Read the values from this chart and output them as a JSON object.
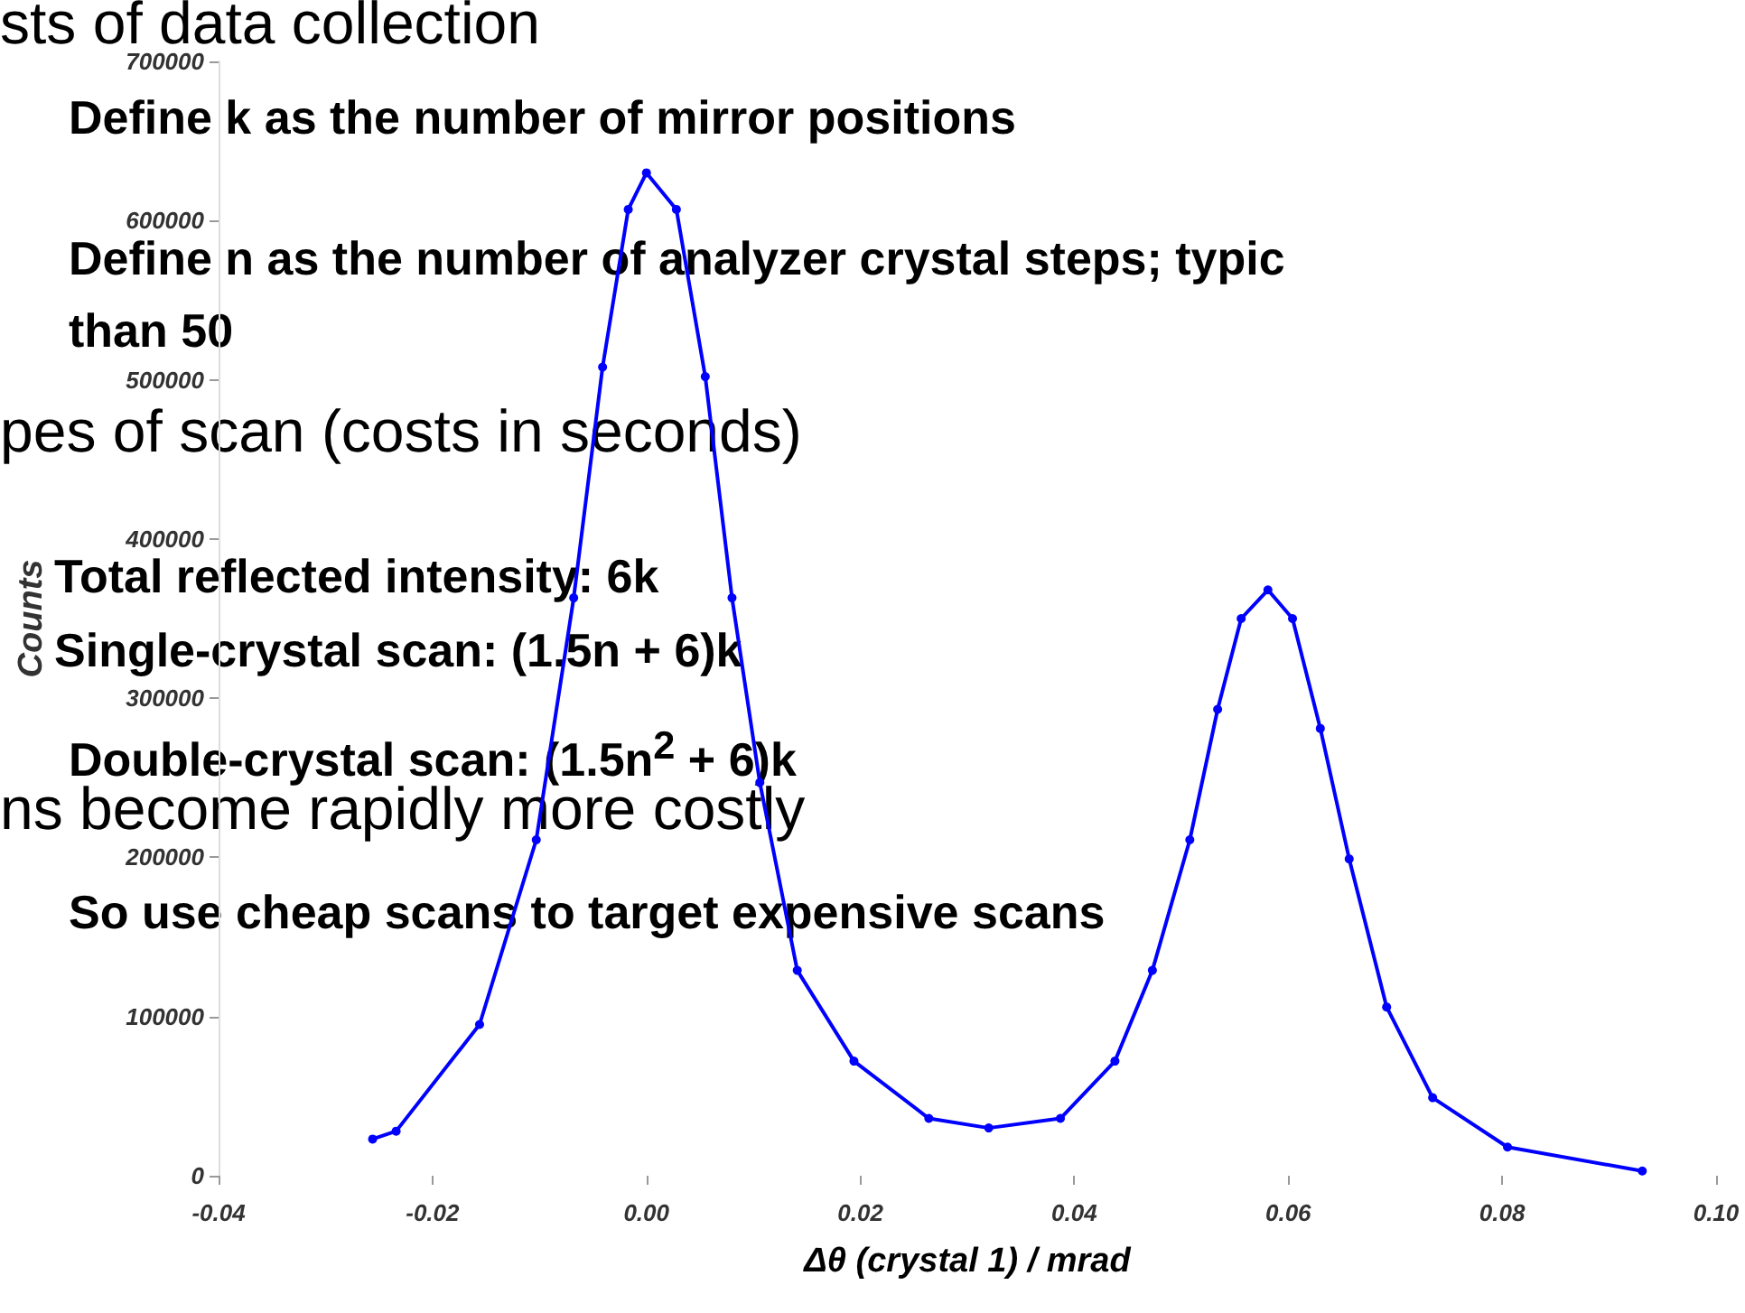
{
  "chart_data": {
    "type": "line",
    "xlabel": "Δθ (crystal 1) / mrad",
    "ylabel": "Counts",
    "x": [
      -0.0256,
      -0.0234,
      -0.0156,
      -0.0103,
      -0.0068,
      -0.0041,
      -0.0017,
      0,
      0.0028,
      0.0055,
      0.008,
      0.0106,
      0.0141,
      0.0194,
      0.0264,
      0.032,
      0.0387,
      0.0438,
      0.0473,
      0.0508,
      0.0534,
      0.0556,
      0.0581,
      0.0604,
      0.063,
      0.0657,
      0.0692,
      0.0735,
      0.0805,
      0.0931
    ],
    "series": [
      {
        "color": "#0000ff",
        "values": [
          23000,
          28000,
          95000,
          211000,
          363000,
          508000,
          607000,
          630000,
          607000,
          502000,
          363000,
          247000,
          129000,
          72000,
          36000,
          30000,
          36000,
          72000,
          129000,
          211000,
          293000,
          350000,
          368000,
          350000,
          281000,
          199000,
          106000,
          49000,
          18000,
          3000
        ]
      }
    ],
    "xlim": [
      -0.04,
      0.1
    ],
    "xticks": [
      {
        "value": -0.04,
        "label": "-0.04"
      },
      {
        "value": -0.02,
        "label": "-0.02"
      },
      {
        "value": 0,
        "label": "0.00"
      },
      {
        "value": 0.02,
        "label": "0.02"
      },
      {
        "value": 0.04,
        "label": "0.04"
      },
      {
        "value": 0.06,
        "label": "0.06"
      },
      {
        "value": 0.08,
        "label": "0.08"
      },
      {
        "value": 0.1,
        "label": "0.10"
      }
    ],
    "ylim": [
      0,
      700000
    ],
    "yticks": [
      0,
      100000,
      200000,
      300000,
      400000,
      500000,
      600000,
      700000
    ],
    "grid": false,
    "marker": "circle",
    "line_style": "solid",
    "annotations": [
      "sts of data collection",
      "Define k as the number of mirror positions",
      "Define n as the number of analyzer crystal steps; typic",
      "than 50",
      "pes of scan (costs in seconds)",
      "Total reflected intensity: 6k",
      "Single-crystal scan: (1.5n + 6)k",
      "Double-crystal scan: (1.5n$^{2}$ + 6)k",
      "ns become rapidly more costly",
      "So use cheap scans to target expensive scans"
    ]
  }
}
